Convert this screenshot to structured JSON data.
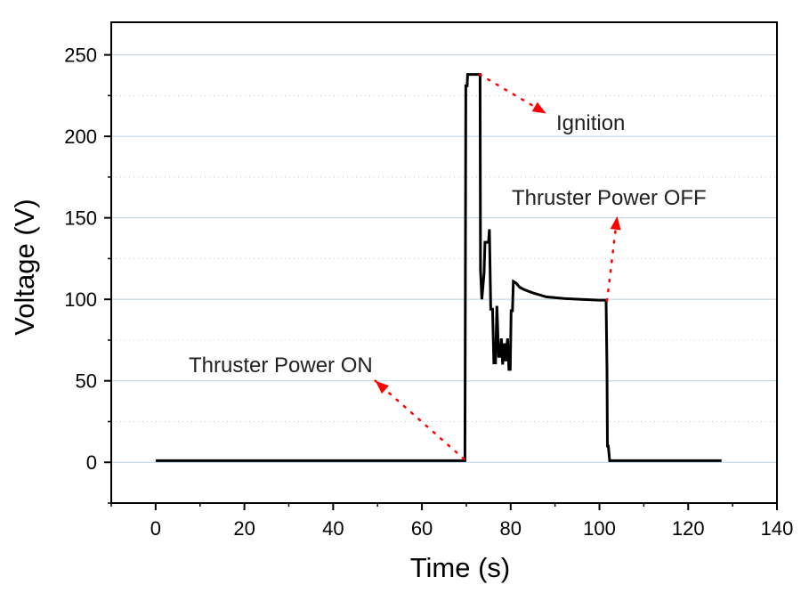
{
  "chart_data": {
    "type": "line",
    "title": "",
    "xlabel": "Time (s)",
    "ylabel": "Voltage (V)",
    "xlim": [
      -10,
      140
    ],
    "ylim": [
      -25,
      270
    ],
    "xticks": [
      0,
      20,
      40,
      60,
      80,
      100,
      120,
      140
    ],
    "yticks": [
      0,
      50,
      100,
      150,
      200,
      250
    ],
    "grid": "horizontal major solid, minor dotted",
    "series": [
      {
        "name": "Voltage",
        "color": "#000000",
        "x": [
          0,
          69.7,
          69.9,
          70.2,
          70.3,
          73.1,
          73.2,
          73.5,
          74.0,
          74.2,
          75.0,
          75.2,
          75.5,
          75.9,
          76.2,
          76.6,
          76.9,
          77.3,
          77.6,
          77.9,
          78.2,
          78.6,
          78.9,
          79.3,
          79.6,
          79.9,
          80.1,
          80.4,
          80.6,
          81.2,
          82.0,
          83.0,
          85.0,
          88.0,
          92.0,
          96.0,
          100.0,
          101.5,
          101.7,
          101.8,
          102.0,
          102.3,
          127.5
        ],
        "y": [
          1,
          1,
          231,
          231,
          238,
          238,
          118,
          100,
          116,
          135,
          135,
          143,
          94,
          94,
          61,
          61,
          96,
          65,
          65,
          76,
          60,
          73,
          62,
          76,
          57,
          57,
          93,
          93,
          111,
          110,
          107.5,
          106,
          104,
          101.5,
          100.5,
          100,
          99.5,
          99.5,
          57,
          10,
          10,
          1,
          1
        ]
      }
    ],
    "annotations": [
      {
        "text": "Ignition",
        "arrow_from": [
          73,
          238
        ],
        "arrow_to": [
          88,
          214
        ]
      },
      {
        "text": "Thruster Power OFF",
        "arrow_from": [
          101.7,
          99
        ],
        "arrow_to": [
          104,
          151
        ]
      },
      {
        "text": "Thruster Power ON",
        "arrow_from": [
          69.5,
          2
        ],
        "arrow_to": [
          49.5,
          50
        ]
      }
    ],
    "annotation_color": "#ff0000",
    "grid_color": "#b8cfe0"
  }
}
